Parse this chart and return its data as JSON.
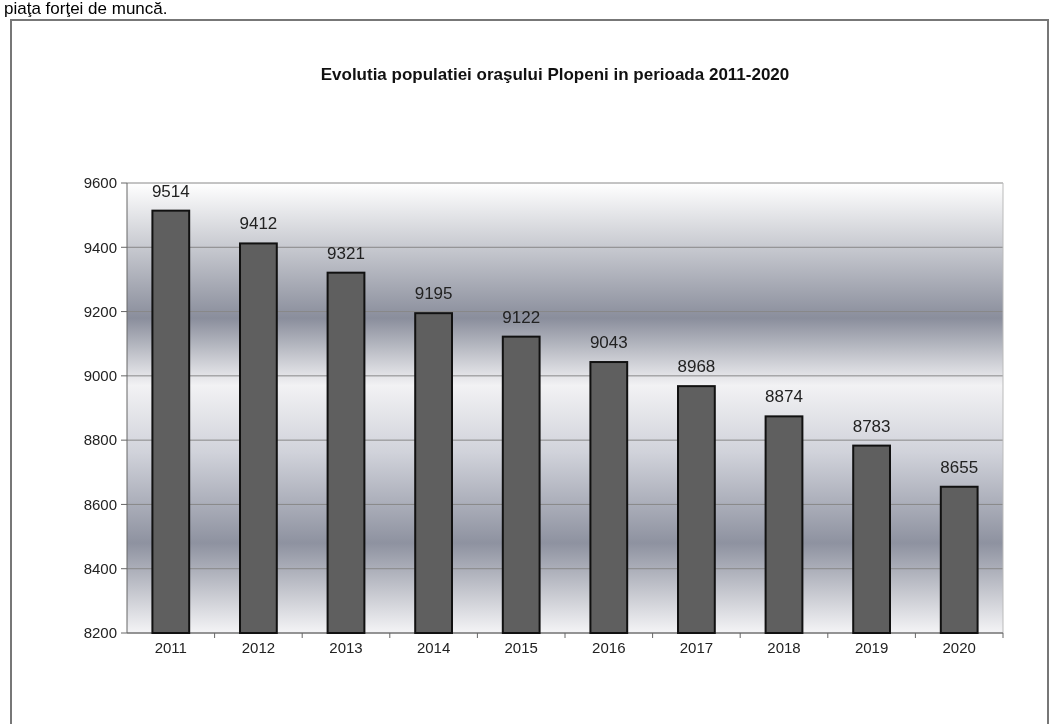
{
  "chart_data": {
    "type": "bar",
    "title": "Evolutia populatiei oraşului Plopeni in perioada 2011-2020",
    "annotations": [
      "piaţa forţei de muncă."
    ],
    "categories": [
      "2011",
      "2012",
      "2013",
      "2014",
      "2015",
      "2016",
      "2017",
      "2018",
      "2019",
      "2020"
    ],
    "values": [
      9514,
      9412,
      9321,
      9195,
      9122,
      9043,
      8968,
      8874,
      8783,
      8655
    ],
    "color": "#5f5f5f",
    "ylim": [
      8200,
      9600
    ],
    "yticks": [
      8200,
      8400,
      8600,
      8800,
      9000,
      9200,
      9400,
      9600
    ],
    "grid": "y",
    "data_labels": true
  }
}
